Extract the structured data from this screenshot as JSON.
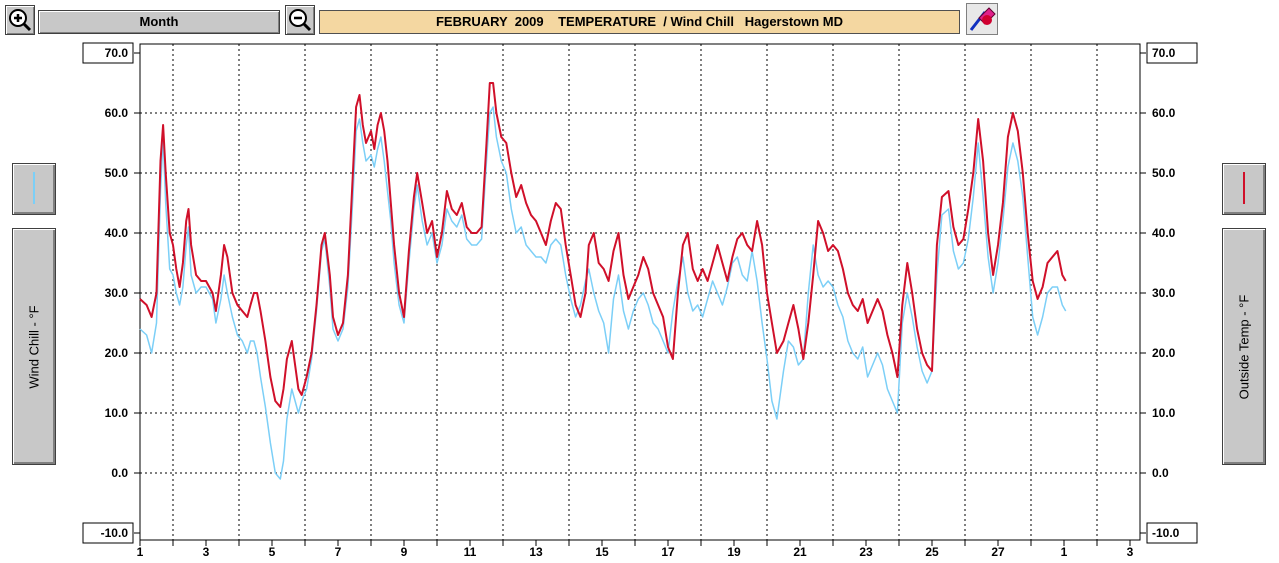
{
  "toolbar": {
    "zoom_in_icon": "zoom-in-icon",
    "zoom_out_icon": "zoom-out-icon",
    "period_label": "Month",
    "title": "FEBRUARY  2009    TEMPERATURE  / Wind Chill   Hagerstown MD",
    "tool_icon": "eraser-pencil-icon"
  },
  "left_axis": {
    "title": "Wind Chill - °F",
    "legend_color": "#7ccff7"
  },
  "right_axis": {
    "title": "Outside Temp - °F",
    "legend_color": "#d0102a"
  },
  "chart_data": {
    "type": "line",
    "ylim": [
      -10,
      70
    ],
    "y_ticks": [
      "70.0",
      "60.0",
      "50.0",
      "40.0",
      "30.0",
      "20.0",
      "10.0",
      "0.0",
      "-10.0"
    ],
    "x_tick_labels": [
      "1",
      "3",
      "5",
      "7",
      "9",
      "11",
      "13",
      "15",
      "17",
      "19",
      "21",
      "23",
      "25",
      "27",
      "1",
      "3"
    ],
    "xlim_days": [
      1,
      32
    ],
    "grid": true,
    "series": [
      {
        "color": "#d0102a",
        "x": [
          1.0,
          1.2,
          1.35,
          1.5,
          1.62,
          1.7,
          1.78,
          1.9,
          2.0,
          2.1,
          2.2,
          2.3,
          2.4,
          2.47,
          2.55,
          2.7,
          2.85,
          3.0,
          3.2,
          3.3,
          3.45,
          3.55,
          3.65,
          3.8,
          3.95,
          4.1,
          4.25,
          4.35,
          4.45,
          4.55,
          4.65,
          4.8,
          4.95,
          5.1,
          5.25,
          5.35,
          5.45,
          5.6,
          5.7,
          5.8,
          5.9,
          6.05,
          6.2,
          6.35,
          6.5,
          6.6,
          6.75,
          6.85,
          7.0,
          7.15,
          7.3,
          7.45,
          7.55,
          7.65,
          7.75,
          7.85,
          8.0,
          8.1,
          8.2,
          8.3,
          8.4,
          8.5,
          8.6,
          8.7,
          8.85,
          9.0,
          9.15,
          9.3,
          9.4,
          9.55,
          9.7,
          9.85,
          10.0,
          10.15,
          10.3,
          10.45,
          10.6,
          10.75,
          10.9,
          11.05,
          11.2,
          11.35,
          11.5,
          11.6,
          11.7,
          11.8,
          11.95,
          12.1,
          12.25,
          12.4,
          12.55,
          12.7,
          12.85,
          13.0,
          13.15,
          13.3,
          13.45,
          13.6,
          13.75,
          13.9,
          14.05,
          14.2,
          14.35,
          14.5,
          14.6,
          14.75,
          14.9,
          15.05,
          15.2,
          15.35,
          15.5,
          15.65,
          15.8,
          15.95,
          16.1,
          16.25,
          16.4,
          16.55,
          16.7,
          16.85,
          17.0,
          17.15,
          17.3,
          17.45,
          17.6,
          17.75,
          17.9,
          18.05,
          18.2,
          18.35,
          18.5,
          18.65,
          18.8,
          18.95,
          19.1,
          19.25,
          19.4,
          19.55,
          19.7,
          19.85,
          20.0,
          20.15,
          20.3,
          20.5,
          20.65,
          20.8,
          20.95,
          21.1,
          21.25,
          21.4,
          21.55,
          21.7,
          21.85,
          22.0,
          22.15,
          22.3,
          22.45,
          22.6,
          22.75,
          22.9,
          23.05,
          23.2,
          23.35,
          23.5,
          23.65,
          23.8,
          23.95,
          24.1,
          24.25,
          24.4,
          24.55,
          24.7,
          24.85,
          25.0,
          25.15,
          25.3,
          25.5,
          25.65,
          25.8,
          25.95,
          26.1,
          26.25,
          26.4,
          26.55,
          26.7,
          26.85,
          27.0,
          27.15,
          27.3,
          27.45,
          27.6,
          27.75,
          27.9,
          28.05,
          28.2,
          28.35,
          28.5,
          28.65,
          28.8,
          28.95,
          29.05
        ],
        "y": [
          29,
          28,
          26,
          30,
          52,
          58,
          50,
          40,
          38,
          34,
          31,
          35,
          42,
          44,
          38,
          33,
          32,
          32,
          30,
          27,
          33,
          38,
          36,
          30,
          28,
          27,
          26,
          28,
          30,
          30,
          27,
          22,
          16,
          12,
          11,
          14,
          19,
          22,
          18,
          14,
          13,
          16,
          20,
          28,
          38,
          40,
          33,
          26,
          23,
          25,
          33,
          50,
          61,
          63,
          58,
          55,
          57,
          54,
          58,
          60,
          57,
          52,
          45,
          38,
          30,
          26,
          37,
          46,
          50,
          45,
          40,
          42,
          36,
          40,
          47,
          44,
          43,
          45,
          41,
          40,
          40,
          41,
          55,
          65,
          65,
          60,
          56,
          55,
          50,
          46,
          48,
          45,
          43,
          42,
          40,
          38,
          42,
          45,
          44,
          38,
          33,
          28,
          26,
          30,
          38,
          40,
          35,
          34,
          32,
          37,
          40,
          33,
          29,
          31,
          33,
          36,
          34,
          30,
          28,
          26,
          21,
          19,
          30,
          38,
          40,
          34,
          32,
          34,
          32,
          35,
          38,
          35,
          32,
          36,
          39,
          40,
          38,
          37,
          42,
          38,
          30,
          25,
          20,
          22,
          25,
          28,
          24,
          19,
          25,
          33,
          42,
          40,
          37,
          38,
          37,
          34,
          30,
          28,
          27,
          29,
          25,
          27,
          29,
          27,
          23,
          20,
          16,
          28,
          35,
          30,
          24,
          20,
          18,
          17,
          38,
          46,
          47,
          41,
          38,
          39,
          44,
          50,
          59,
          52,
          40,
          33,
          38,
          45,
          56,
          60,
          57,
          50,
          40,
          32,
          29,
          31,
          35,
          36,
          37,
          33,
          32
        ],
        "width": 2
      },
      {
        "color": "#7ccff7",
        "x": [
          1.0,
          1.2,
          1.35,
          1.5,
          1.62,
          1.7,
          1.78,
          1.9,
          2.0,
          2.1,
          2.2,
          2.3,
          2.4,
          2.47,
          2.55,
          2.7,
          2.85,
          3.0,
          3.2,
          3.3,
          3.45,
          3.55,
          3.65,
          3.8,
          3.95,
          4.1,
          4.25,
          4.35,
          4.45,
          4.55,
          4.65,
          4.8,
          4.95,
          5.1,
          5.25,
          5.35,
          5.45,
          5.6,
          5.7,
          5.8,
          5.9,
          6.05,
          6.2,
          6.35,
          6.5,
          6.6,
          6.75,
          6.85,
          7.0,
          7.15,
          7.3,
          7.45,
          7.55,
          7.65,
          7.75,
          7.85,
          8.0,
          8.1,
          8.2,
          8.3,
          8.4,
          8.5,
          8.6,
          8.7,
          8.85,
          9.0,
          9.15,
          9.3,
          9.4,
          9.55,
          9.7,
          9.85,
          10.0,
          10.15,
          10.3,
          10.45,
          10.6,
          10.75,
          10.9,
          11.05,
          11.2,
          11.35,
          11.5,
          11.6,
          11.7,
          11.8,
          11.95,
          12.1,
          12.25,
          12.4,
          12.55,
          12.7,
          12.85,
          13.0,
          13.15,
          13.3,
          13.45,
          13.6,
          13.75,
          13.9,
          14.05,
          14.2,
          14.35,
          14.5,
          14.6,
          14.75,
          14.9,
          15.05,
          15.2,
          15.35,
          15.5,
          15.65,
          15.8,
          15.95,
          16.1,
          16.25,
          16.4,
          16.55,
          16.7,
          16.85,
          17.0,
          17.15,
          17.3,
          17.45,
          17.6,
          17.75,
          17.9,
          18.05,
          18.2,
          18.35,
          18.5,
          18.65,
          18.8,
          18.95,
          19.1,
          19.25,
          19.4,
          19.55,
          19.7,
          19.85,
          20.0,
          20.15,
          20.3,
          20.5,
          20.65,
          20.8,
          20.95,
          21.1,
          21.25,
          21.4,
          21.55,
          21.7,
          21.85,
          22.0,
          22.15,
          22.3,
          22.45,
          22.6,
          22.75,
          22.9,
          23.05,
          23.2,
          23.35,
          23.5,
          23.65,
          23.8,
          23.95,
          24.1,
          24.25,
          24.4,
          24.55,
          24.7,
          24.85,
          25.0,
          25.15,
          25.3,
          25.5,
          25.65,
          25.8,
          25.95,
          26.1,
          26.25,
          26.4,
          26.55,
          26.7,
          26.85,
          27.0,
          27.15,
          27.3,
          27.45,
          27.6,
          27.75,
          27.9,
          28.05,
          28.2,
          28.35,
          28.5,
          28.65,
          28.8,
          28.95,
          29.05
        ],
        "y": [
          24,
          23,
          20,
          25,
          47,
          56,
          45,
          34,
          33,
          30,
          28,
          31,
          38,
          41,
          33,
          30,
          31,
          31,
          29,
          25,
          29,
          33,
          30,
          26,
          23,
          22,
          20,
          22,
          22,
          20,
          16,
          11,
          5,
          0,
          -1,
          2,
          9,
          14,
          12,
          10,
          12,
          14,
          19,
          27,
          37,
          39,
          31,
          24,
          22,
          24,
          31,
          46,
          57,
          59,
          55,
          52,
          53,
          51,
          54,
          56,
          52,
          47,
          42,
          35,
          28,
          25,
          35,
          44,
          48,
          42,
          38,
          40,
          35,
          38,
          44,
          42,
          41,
          43,
          39,
          38,
          38,
          39,
          52,
          60,
          61,
          56,
          52,
          50,
          44,
          40,
          41,
          38,
          37,
          36,
          36,
          35,
          38,
          39,
          38,
          33,
          29,
          26,
          28,
          32,
          34,
          30,
          27,
          25,
          20,
          29,
          33,
          27,
          24,
          27,
          29,
          30,
          28,
          25,
          24,
          22,
          20,
          27,
          32,
          36,
          30,
          27,
          28,
          26,
          29,
          32,
          30,
          28,
          31,
          35,
          36,
          33,
          32,
          37,
          32,
          25,
          19,
          12,
          9,
          17,
          22,
          21,
          18,
          19,
          30,
          38,
          33,
          31,
          32,
          31,
          28,
          26,
          22,
          20,
          19,
          21,
          16,
          18,
          20,
          18,
          14,
          12,
          10,
          25,
          30,
          26,
          21,
          17,
          15,
          17,
          33,
          43,
          44,
          37,
          34,
          35,
          39,
          46,
          55,
          46,
          36,
          30,
          35,
          42,
          51,
          55,
          52,
          46,
          36,
          26,
          23,
          26,
          30,
          31,
          31,
          28,
          27
        ],
        "width": 1.5
      }
    ]
  }
}
